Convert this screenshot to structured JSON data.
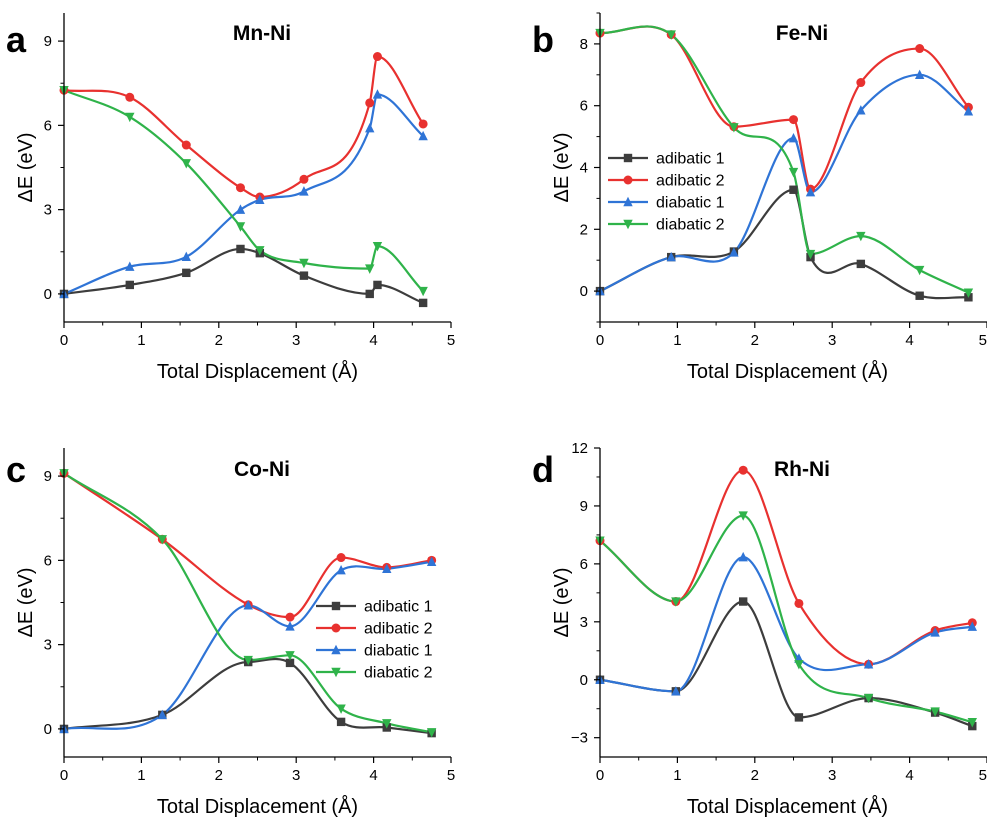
{
  "series_styles": [
    {
      "color": "#3d3d3d",
      "marker": "square"
    },
    {
      "color": "#e8312f",
      "marker": "circle"
    },
    {
      "color": "#2f74d6",
      "marker": "triangle-up"
    },
    {
      "color": "#2fb34a",
      "marker": "triangle-down"
    }
  ],
  "chart_data": [
    {
      "type": "line",
      "panel_letter": "a",
      "title": "Mn-Ni",
      "xlabel": "Total Displacement (Å)",
      "ylabel": "ΔE (eV)",
      "xlim": [
        0,
        5
      ],
      "ylim": [
        -1,
        10
      ],
      "xticks": [
        0,
        1,
        2,
        3,
        4,
        5
      ],
      "yticks": [
        0,
        3,
        6,
        9
      ],
      "legend": null,
      "series": [
        {
          "name": "adibatic 1",
          "x": [
            0,
            0.85,
            1.58,
            2.28,
            2.53,
            3.1,
            3.95,
            4.05,
            4.64
          ],
          "y": [
            0,
            0.32,
            0.75,
            1.6,
            1.45,
            0.65,
            0.0,
            0.32,
            -0.32
          ]
        },
        {
          "name": "adibatic 2",
          "x": [
            0,
            0.85,
            1.58,
            2.28,
            2.53,
            3.1,
            3.95,
            4.05,
            4.64
          ],
          "y": [
            7.25,
            7.0,
            5.3,
            3.78,
            3.45,
            4.08,
            6.8,
            8.45,
            6.05
          ]
        },
        {
          "name": "diabatic 1",
          "x": [
            0,
            0.85,
            1.58,
            2.28,
            2.53,
            3.1,
            3.95,
            4.05,
            4.64
          ],
          "y": [
            0,
            0.97,
            1.32,
            3.0,
            3.35,
            3.65,
            5.9,
            7.1,
            5.62
          ]
        },
        {
          "name": "diabatic 2",
          "x": [
            0,
            0.85,
            1.58,
            2.28,
            2.53,
            3.1,
            3.95,
            4.05,
            4.64
          ],
          "y": [
            7.25,
            6.3,
            4.65,
            2.4,
            1.55,
            1.1,
            0.9,
            1.7,
            0.1
          ]
        }
      ]
    },
    {
      "type": "line",
      "panel_letter": "b",
      "title": "Fe-Ni",
      "xlabel": "Total Displacement (Å)",
      "ylabel": "ΔE (eV)",
      "xlim": [
        0,
        5
      ],
      "ylim": [
        -1,
        9
      ],
      "xticks": [
        0,
        1,
        2,
        3,
        4,
        5
      ],
      "yticks": [
        0,
        2,
        4,
        6,
        8
      ],
      "legend": "upper-left",
      "series": [
        {
          "name": "adibatic 1",
          "x": [
            0,
            0.92,
            1.73,
            2.5,
            2.72,
            3.37,
            4.13,
            4.76
          ],
          "y": [
            0,
            1.1,
            1.28,
            3.28,
            1.1,
            0.88,
            -0.15,
            -0.2
          ]
        },
        {
          "name": "adibatic 2",
          "x": [
            0,
            0.92,
            1.73,
            2.5,
            2.72,
            3.37,
            4.13,
            4.76
          ],
          "y": [
            8.35,
            8.3,
            5.32,
            5.55,
            3.3,
            6.75,
            7.85,
            5.95
          ]
        },
        {
          "name": "diabatic 1",
          "x": [
            0,
            0.92,
            1.73,
            2.5,
            2.72,
            3.37,
            4.13,
            4.76
          ],
          "y": [
            0,
            1.1,
            1.25,
            4.95,
            3.2,
            5.85,
            7.0,
            5.82
          ]
        },
        {
          "name": "diabatic 2",
          "x": [
            0,
            0.92,
            1.73,
            2.5,
            2.72,
            3.37,
            4.13,
            4.76
          ],
          "y": [
            8.35,
            8.3,
            5.3,
            3.85,
            1.2,
            1.78,
            0.68,
            -0.05
          ]
        }
      ]
    },
    {
      "type": "line",
      "panel_letter": "c",
      "title": "Co-Ni",
      "xlabel": "Total Displacement (Å)",
      "ylabel": "ΔE (eV)",
      "xlim": [
        0,
        5
      ],
      "ylim": [
        -1,
        10
      ],
      "xticks": [
        0,
        1,
        2,
        3,
        4,
        5
      ],
      "yticks": [
        0,
        3,
        6,
        9
      ],
      "legend": "center-right",
      "series": [
        {
          "name": "adibatic 1",
          "x": [
            0,
            1.27,
            2.38,
            2.92,
            3.58,
            4.17,
            4.75
          ],
          "y": [
            0,
            0.5,
            2.38,
            2.35,
            0.25,
            0.05,
            -0.15
          ]
        },
        {
          "name": "adibatic 2",
          "x": [
            0,
            1.27,
            2.38,
            2.92,
            3.58,
            4.17,
            4.75
          ],
          "y": [
            9.1,
            6.75,
            4.42,
            3.98,
            6.1,
            5.75,
            6.0
          ]
        },
        {
          "name": "diabatic 1",
          "x": [
            0,
            1.27,
            2.38,
            2.92,
            3.58,
            4.17,
            4.75
          ],
          "y": [
            0,
            0.5,
            4.4,
            3.65,
            5.65,
            5.7,
            5.95
          ]
        },
        {
          "name": "diabatic 2",
          "x": [
            0,
            1.27,
            2.38,
            2.92,
            3.58,
            4.17,
            4.75
          ],
          "y": [
            9.1,
            6.75,
            2.45,
            2.62,
            0.72,
            0.2,
            -0.12
          ]
        }
      ]
    },
    {
      "type": "line",
      "panel_letter": "d",
      "title": "Rh-Ni",
      "xlabel": "Total Displacement (Å)",
      "ylabel": "ΔE (eV)",
      "xlim": [
        0,
        5
      ],
      "ylim": [
        -4,
        12
      ],
      "xticks": [
        0,
        1,
        2,
        3,
        4,
        5
      ],
      "yticks": [
        -3,
        0,
        3,
        6,
        9,
        12
      ],
      "legend": null,
      "series": [
        {
          "name": "adibatic 1",
          "x": [
            0,
            0.98,
            1.85,
            2.57,
            3.47,
            4.33,
            4.81
          ],
          "y": [
            0,
            -0.6,
            4.05,
            -1.95,
            -0.95,
            -1.7,
            -2.4
          ]
        },
        {
          "name": "adibatic 2",
          "x": [
            0,
            0.98,
            1.85,
            2.57,
            3.47,
            4.33,
            4.81
          ],
          "y": [
            7.2,
            4.05,
            10.85,
            3.95,
            0.8,
            2.55,
            2.95
          ]
        },
        {
          "name": "diabatic 1",
          "x": [
            0,
            0.98,
            1.85,
            2.57,
            3.47,
            4.33,
            4.81
          ],
          "y": [
            0,
            -0.6,
            6.35,
            1.1,
            0.8,
            2.45,
            2.75
          ]
        },
        {
          "name": "diabatic 2",
          "x": [
            0,
            0.98,
            1.85,
            2.57,
            3.47,
            4.33,
            4.81
          ],
          "y": [
            7.2,
            4.05,
            8.5,
            0.8,
            -0.95,
            -1.65,
            -2.2
          ]
        }
      ]
    }
  ]
}
